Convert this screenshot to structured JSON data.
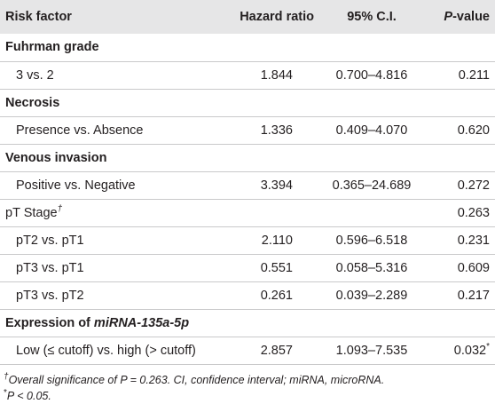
{
  "table": {
    "headers": {
      "risk_factor": "Risk factor",
      "hazard_ratio": "Hazard ratio",
      "ci": "95% C.I.",
      "p_letter": "P",
      "p_suffix": "-value"
    },
    "rows": [
      {
        "kind": "section",
        "label": "Fuhrman grade"
      },
      {
        "kind": "item",
        "label": "3 vs. 2",
        "hr": "1.844",
        "ci": "0.700–4.816",
        "p": "0.211"
      },
      {
        "kind": "section",
        "label": "Necrosis"
      },
      {
        "kind": "item",
        "label": "Presence vs. Absence",
        "hr": "1.336",
        "ci": "0.409–4.070",
        "p": "0.620"
      },
      {
        "kind": "section",
        "label": "Venous invasion"
      },
      {
        "kind": "item",
        "label": "Positive vs. Negative",
        "hr": "3.394",
        "ci": "0.365–24.689",
        "p": "0.272"
      },
      {
        "kind": "plain",
        "label": "pT Stage",
        "sup": "†",
        "p": "0.263"
      },
      {
        "kind": "item",
        "label": "pT2 vs. pT1",
        "hr": "2.110",
        "ci": "0.596–6.518",
        "p": "0.231"
      },
      {
        "kind": "item",
        "label": "pT3 vs. pT1",
        "hr": "0.551",
        "ci": "0.058–5.316",
        "p": "0.609"
      },
      {
        "kind": "item",
        "label": "pT3 vs. pT2",
        "hr": "0.261",
        "ci": "0.039–2.289",
        "p": "0.217"
      },
      {
        "kind": "section",
        "label": "Expression of ",
        "label_italic": "miRNA-135a-5p"
      },
      {
        "kind": "item",
        "label": "Low (≤ cutoff) vs. high (> cutoff)",
        "hr": "2.857",
        "ci": "1.093–7.535",
        "p": "0.032",
        "p_sup": "*"
      }
    ]
  },
  "footnotes": {
    "fn1_mark": "†",
    "fn1_text": "Overall significance of P = 0.263. CI, confidence interval; miRNA, microRNA.",
    "fn2_mark": "*",
    "fn2_text": "P < 0.05."
  }
}
